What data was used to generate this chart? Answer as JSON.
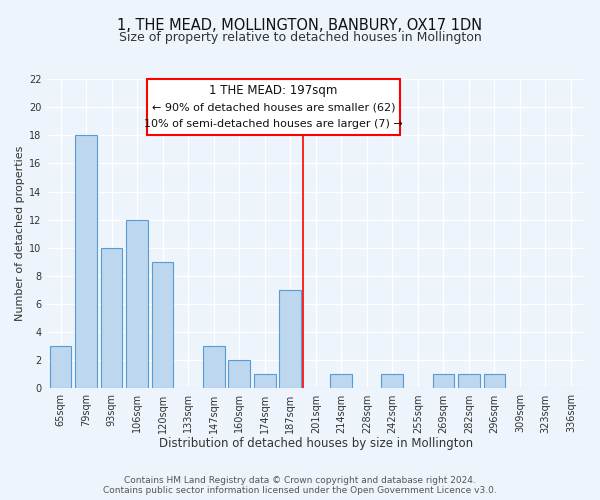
{
  "title": "1, THE MEAD, MOLLINGTON, BANBURY, OX17 1DN",
  "subtitle": "Size of property relative to detached houses in Mollington",
  "xlabel": "Distribution of detached houses by size in Mollington",
  "ylabel": "Number of detached properties",
  "bar_labels": [
    "65sqm",
    "79sqm",
    "93sqm",
    "106sqm",
    "120sqm",
    "133sqm",
    "147sqm",
    "160sqm",
    "174sqm",
    "187sqm",
    "201sqm",
    "214sqm",
    "228sqm",
    "242sqm",
    "255sqm",
    "269sqm",
    "282sqm",
    "296sqm",
    "309sqm",
    "323sqm",
    "336sqm"
  ],
  "bar_values": [
    3,
    18,
    10,
    12,
    9,
    0,
    3,
    2,
    1,
    7,
    0,
    1,
    0,
    1,
    0,
    1,
    1,
    1,
    0,
    0,
    0
  ],
  "bar_color": "#bdd7ee",
  "bar_edge_color": "#5b9bd5",
  "red_line_index": 10,
  "annotation_title": "1 THE MEAD: 197sqm",
  "annotation_line1": "← 90% of detached houses are smaller (62)",
  "annotation_line2": "10% of semi-detached houses are larger (7) →",
  "footer_line1": "Contains HM Land Registry data © Crown copyright and database right 2024.",
  "footer_line2": "Contains public sector information licensed under the Open Government Licence v3.0.",
  "ylim": [
    0,
    22
  ],
  "yticks": [
    0,
    2,
    4,
    6,
    8,
    10,
    12,
    14,
    16,
    18,
    20,
    22
  ],
  "bg_color": "#eef4fc",
  "grid_color": "#ffffff",
  "title_fontsize": 10.5,
  "subtitle_fontsize": 9.0,
  "xlabel_fontsize": 8.5,
  "ylabel_fontsize": 8.0,
  "tick_fontsize": 7.0,
  "annot_title_fontsize": 8.5,
  "annot_body_fontsize": 8.0,
  "footer_fontsize": 6.5
}
